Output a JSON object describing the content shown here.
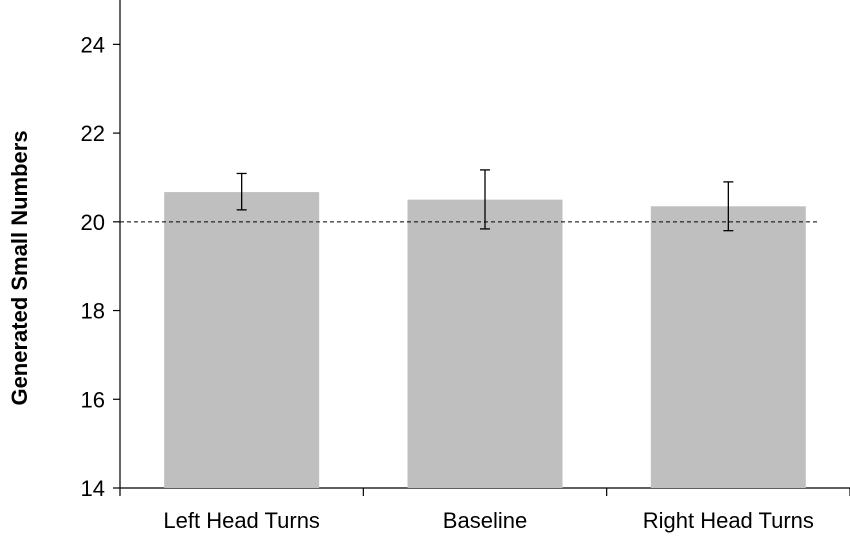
{
  "chart_data": {
    "type": "bar",
    "title": "",
    "xlabel": "",
    "ylabel": "Generated  Small  Numbers",
    "categories": [
      "Left Head Turns",
      "Baseline",
      "Right Head Turns"
    ],
    "values": [
      20.67,
      20.5,
      20.35
    ],
    "error_low": [
      20.27,
      19.84,
      19.8
    ],
    "error_high": [
      21.09,
      21.17,
      20.9
    ],
    "ylim": [
      14,
      25
    ],
    "yticks": [
      "14",
      "16",
      "18",
      "20",
      "22",
      "24"
    ],
    "reference_line": 20,
    "bar_color": "#bfbfbf",
    "grid": false,
    "legend": "none"
  }
}
